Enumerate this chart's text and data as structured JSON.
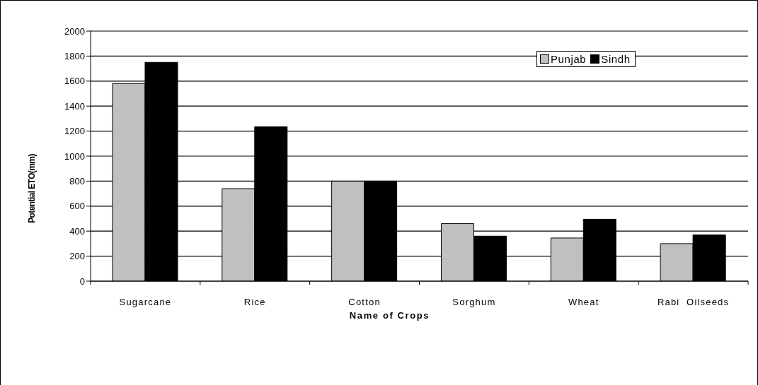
{
  "chart_data": {
    "type": "bar",
    "xlabel": "Name of Crops",
    "ylabel": "Potential ETO(mm)",
    "categories": [
      "Sugarcane",
      "Rice",
      "Cotton",
      "Sorghum",
      "Wheat",
      "Rabi  Oilseeds"
    ],
    "series": [
      {
        "name": "Punjab",
        "color": "#c0c0c0",
        "values": [
          1580,
          740,
          800,
          460,
          345,
          300
        ]
      },
      {
        "name": "Sindh",
        "color": "#000000",
        "values": [
          1750,
          1235,
          800,
          360,
          495,
          370
        ]
      }
    ],
    "ylim": [
      0,
      2000
    ],
    "yticks": [
      0,
      200,
      400,
      600,
      800,
      1000,
      1200,
      1400,
      1600,
      1800,
      2000
    ],
    "grid": "y",
    "legend": "top right"
  }
}
